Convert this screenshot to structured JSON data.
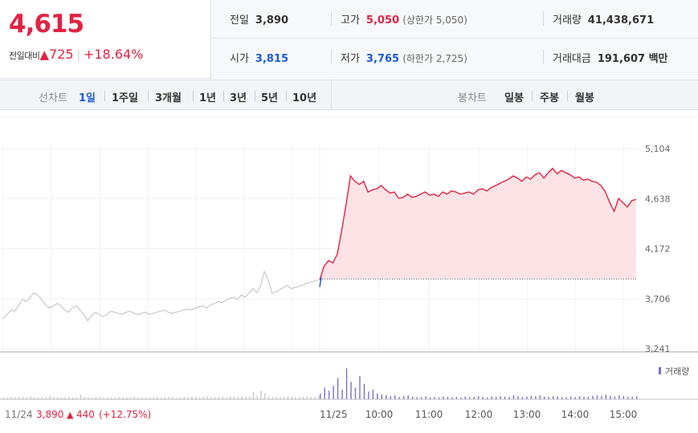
{
  "quote": {
    "price": "4,615",
    "change_label": "전일대비",
    "change_arrow": "▲",
    "change_value": "725",
    "change_pct": "+18.64%",
    "prev_close": {
      "label": "전일",
      "value": "3,890"
    },
    "high": {
      "label": "고가",
      "value": "5,050",
      "limit_label": "상한가",
      "limit_value": "5,050"
    },
    "volume": {
      "label": "거래량",
      "value": "41,438,671"
    },
    "open": {
      "label": "시가",
      "value": "3,815"
    },
    "low": {
      "label": "저가",
      "value": "3,765",
      "limit_label": "하한가",
      "limit_value": "2,725"
    },
    "trade_value": {
      "label": "거래대금",
      "value": "191,607 백만"
    }
  },
  "tabs": {
    "line_label": "선차트",
    "line_items": [
      "1일",
      "1주일",
      "3개월",
      "1년",
      "3년",
      "5년",
      "10년"
    ],
    "active": "1일",
    "candle_label": "봉차트",
    "candle_items": [
      "일봉",
      "주봉",
      "월봉"
    ]
  },
  "chart_data": {
    "type": "line",
    "y_ticks": [
      "5,104",
      "4,638",
      "4,172",
      "3,706",
      "3,241"
    ],
    "ylim": [
      3241,
      5104
    ],
    "baseline_price": 3890,
    "volume_legend": "거래량",
    "x_ticks": [
      "11/24",
      "11/25",
      "10:00",
      "11:00",
      "12:00",
      "13:00",
      "14:00",
      "15:00"
    ],
    "prev_day_note": {
      "price": "3,890",
      "arrow": "▲",
      "change": "440",
      "pct": "(+12.75%)"
    },
    "colors": {
      "up": "#e12343",
      "down": "#1a5bd6",
      "prev_line": "#c8c8c8",
      "fill": "#fde3e6",
      "volume_today": "#7b6fc7"
    },
    "series": [
      {
        "day": "prev",
        "values": [
          3520,
          3560,
          3600,
          3590,
          3640,
          3700,
          3680,
          3720,
          3760,
          3740,
          3700,
          3650,
          3620,
          3640,
          3660,
          3640,
          3600,
          3580,
          3620,
          3640,
          3600,
          3560,
          3500,
          3550,
          3580,
          3560,
          3540,
          3560,
          3590,
          3580,
          3570,
          3560,
          3580,
          3590,
          3570,
          3560,
          3570,
          3580,
          3560,
          3570,
          3580,
          3590,
          3600,
          3580,
          3570,
          3580,
          3590,
          3600,
          3610,
          3600,
          3620,
          3630,
          3640,
          3620,
          3650,
          3660,
          3680,
          3670,
          3690,
          3710,
          3720,
          3700,
          3740,
          3720,
          3760,
          3800,
          3760,
          3820,
          3960,
          3880,
          3760,
          3770,
          3790,
          3810,
          3830,
          3800,
          3810,
          3820,
          3830,
          3850,
          3860,
          3870,
          3880
        ]
      },
      {
        "day": "today",
        "values": [
          3880,
          4010,
          4060,
          4040,
          4120,
          4340,
          4580,
          4850,
          4800,
          4770,
          4800,
          4700,
          4720,
          4730,
          4760,
          4720,
          4690,
          4700,
          4640,
          4650,
          4680,
          4650,
          4660,
          4680,
          4700,
          4670,
          4680,
          4660,
          4700,
          4680,
          4710,
          4700,
          4680,
          4690,
          4700,
          4680,
          4720,
          4730,
          4710,
          4740,
          4760,
          4780,
          4800,
          4820,
          4850,
          4830,
          4800,
          4840,
          4820,
          4860,
          4880,
          4830,
          4880,
          4920,
          4870,
          4900,
          4880,
          4860,
          4830,
          4840,
          4810,
          4820,
          4800,
          4790,
          4760,
          4700,
          4600,
          4520,
          4640,
          4600,
          4560,
          4620,
          4630
        ]
      }
    ],
    "volume": {
      "prev": [
        0.04,
        0.05,
        0.06,
        0.05,
        0.07,
        0.06,
        0.05,
        0.08,
        0.05,
        0.04,
        0.06,
        0.05,
        0.09,
        0.06,
        0.05,
        0.04,
        0.05,
        0.06,
        0.04,
        0.05,
        0.12,
        0.06,
        0.05,
        0.04,
        0.05,
        0.06,
        0.04,
        0.05,
        0.05,
        0.04,
        0.06,
        0.05,
        0.04,
        0.05,
        0.06,
        0.04,
        0.05,
        0.04,
        0.05,
        0.05,
        0.06,
        0.04,
        0.05,
        0.06,
        0.05,
        0.04,
        0.05,
        0.06,
        0.05,
        0.07,
        0.06,
        0.05,
        0.06,
        0.08,
        0.05,
        0.06,
        0.07,
        0.06,
        0.05,
        0.06,
        0.07,
        0.05,
        0.08,
        0.06,
        0.07,
        0.18,
        0.09,
        0.22,
        0.15,
        0.08,
        0.06,
        0.07,
        0.05,
        0.06,
        0.08,
        0.07,
        0.05,
        0.06,
        0.07,
        0.08,
        0.06,
        0.07,
        0.08
      ],
      "today": [
        0.15,
        0.3,
        0.22,
        0.35,
        0.55,
        0.25,
        0.8,
        0.45,
        0.3,
        0.6,
        0.4,
        0.2,
        0.25,
        0.15,
        0.12,
        0.1,
        0.08,
        0.1,
        0.06,
        0.08,
        0.1,
        0.07,
        0.05,
        0.06,
        0.08,
        0.05,
        0.06,
        0.05,
        0.07,
        0.06,
        0.05,
        0.06,
        0.05,
        0.07,
        0.05,
        0.06,
        0.08,
        0.06,
        0.05,
        0.07,
        0.06,
        0.08,
        0.07,
        0.06,
        0.1,
        0.08,
        0.06,
        0.07,
        0.09,
        0.08,
        0.1,
        0.07,
        0.06,
        0.08,
        0.07,
        0.06,
        0.05,
        0.07,
        0.06,
        0.08,
        0.06,
        0.07,
        0.09,
        0.1,
        0.08,
        0.12,
        0.09,
        0.07,
        0.1,
        0.08,
        0.06,
        0.07,
        0.08
      ]
    }
  }
}
